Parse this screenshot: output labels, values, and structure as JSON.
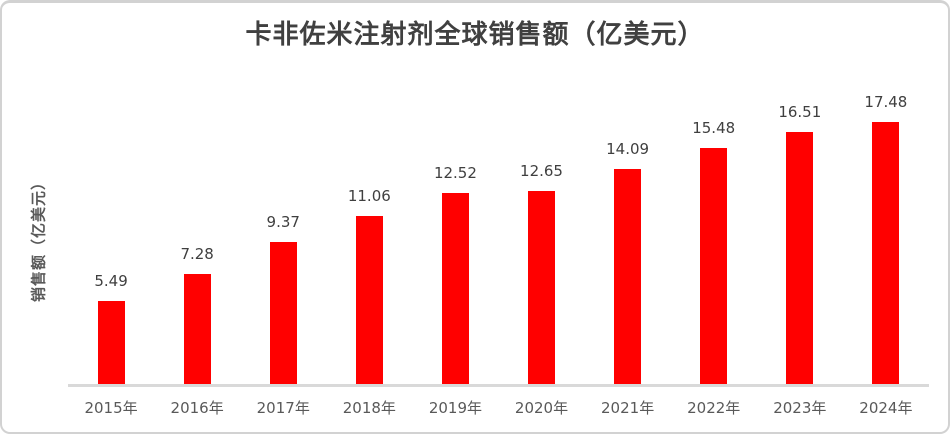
{
  "chart_data": {
    "type": "bar",
    "title": "卡非佐米注射剂全球销售额（亿美元）",
    "ylabel": "销售额（亿美元）",
    "xlabel": "",
    "categories": [
      "2015年",
      "2016年",
      "2017年",
      "2018年",
      "2019年",
      "2020年",
      "2021年",
      "2022年",
      "2023年",
      "2024年"
    ],
    "values": [
      5.49,
      7.28,
      9.37,
      11.06,
      12.52,
      12.65,
      14.09,
      15.48,
      16.51,
      17.48
    ],
    "data_labels": [
      "5.49",
      "7.28",
      "9.37",
      "11.06",
      "12.52",
      "12.65",
      "14.09",
      "15.48",
      "16.51",
      "17.48"
    ],
    "ylim": [
      0,
      19
    ],
    "grid": false,
    "legend_position": "none",
    "bar_color": "#ff0000",
    "axis_line_color": "#d9d9d9",
    "data_label_color": "#3f3f3f",
    "tick_label_color": "#595959",
    "title_color": "#404040",
    "card_border_color": "#d2d2d2"
  }
}
